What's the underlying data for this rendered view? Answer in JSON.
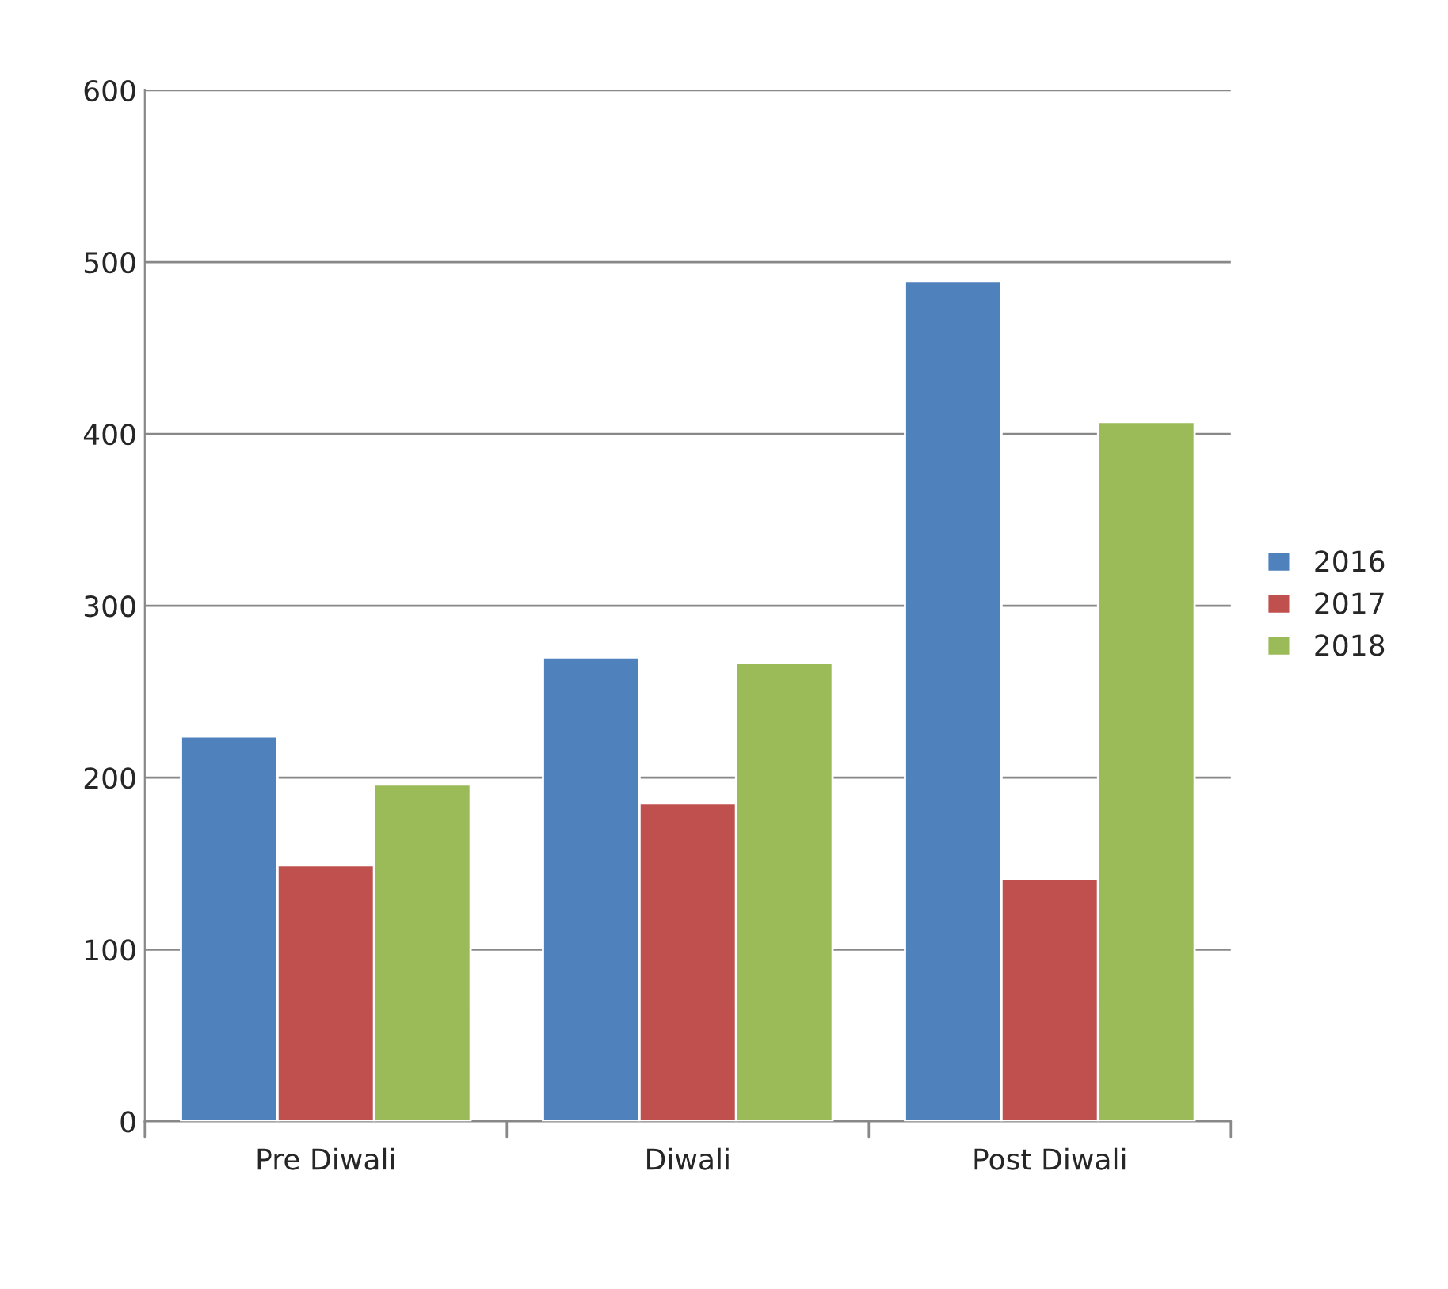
{
  "chart_data": {
    "type": "bar",
    "categories": [
      "Pre Diwali",
      "Diwali",
      "Post Diwali"
    ],
    "series": [
      {
        "name": "2016",
        "color": "#4f81bd",
        "values": [
          224,
          270,
          489
        ]
      },
      {
        "name": "2017",
        "color": "#c0504d",
        "values": [
          149,
          185,
          141
        ]
      },
      {
        "name": "2018",
        "color": "#9bbb59",
        "values": [
          196,
          267,
          407
        ]
      }
    ],
    "ylim": [
      0,
      600
    ],
    "yticks": [
      0,
      100,
      200,
      300,
      400,
      500,
      600
    ],
    "grid": "y",
    "legend": "right"
  }
}
